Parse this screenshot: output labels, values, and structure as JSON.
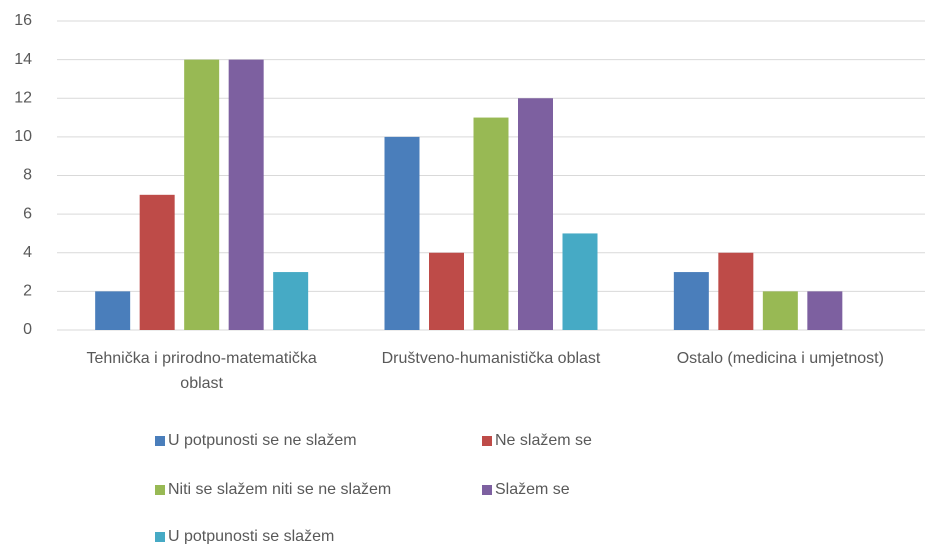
{
  "chart_data": {
    "type": "bar",
    "categories": [
      "Tehnička i prirodno-matematička oblast",
      "Društveno-humanistička oblast",
      "Ostalo (medicina i umjetnost)"
    ],
    "series": [
      {
        "name": "U potpunosti se ne slažem",
        "color": "#4a7ebb",
        "values": [
          2,
          10,
          3
        ]
      },
      {
        "name": "Ne slažem se",
        "color": "#be4b48",
        "values": [
          7,
          4,
          4
        ]
      },
      {
        "name": "Niti se slažem niti se ne slažem",
        "color": "#98b954",
        "values": [
          14,
          11,
          2
        ]
      },
      {
        "name": "Slažem se",
        "color": "#7d60a0",
        "values": [
          14,
          12,
          2
        ]
      },
      {
        "name": "U potpunosti se slažem",
        "color": "#46aac5",
        "values": [
          3,
          5,
          0
        ]
      }
    ],
    "ylim": [
      0,
      16
    ],
    "yticks": [
      0,
      2,
      4,
      6,
      8,
      10,
      12,
      14,
      16
    ],
    "grid": true
  }
}
